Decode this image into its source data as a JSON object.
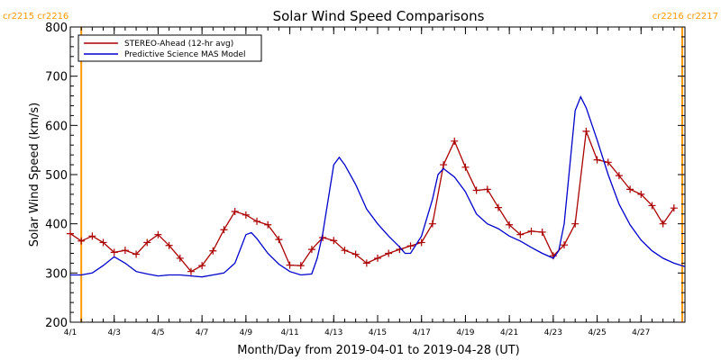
{
  "chart_data": {
    "type": "line",
    "title": "Solar Wind Speed Comparisons",
    "xlabel": "Month/Day from 2019-04-01 to 2019-04-28 (UT)",
    "ylabel": "Solar Wind Speed (km/s)",
    "xlim": [
      "2019-04-01",
      "2019-04-29"
    ],
    "ylim": [
      200,
      800
    ],
    "x_ticks": [
      {
        "date": "2019-04-01",
        "label": "4/1"
      },
      {
        "date": "2019-04-03",
        "label": "4/3"
      },
      {
        "date": "2019-04-05",
        "label": "4/5"
      },
      {
        "date": "2019-04-07",
        "label": "4/7"
      },
      {
        "date": "2019-04-09",
        "label": "4/9"
      },
      {
        "date": "2019-04-11",
        "label": "4/11"
      },
      {
        "date": "2019-04-13",
        "label": "4/13"
      },
      {
        "date": "2019-04-15",
        "label": "4/15"
      },
      {
        "date": "2019-04-17",
        "label": "4/17"
      },
      {
        "date": "2019-04-19",
        "label": "4/19"
      },
      {
        "date": "2019-04-21",
        "label": "4/21"
      },
      {
        "date": "2019-04-23",
        "label": "4/23"
      },
      {
        "date": "2019-04-25",
        "label": "4/25"
      },
      {
        "date": "2019-04-27",
        "label": "4/27"
      }
    ],
    "y_ticks": [
      200,
      300,
      400,
      500,
      600,
      700,
      800
    ],
    "legend_position": "top-left",
    "carrington_markers": [
      {
        "date": "2019-04-01T12:00",
        "label": "cr2215 cr2216",
        "side": "left"
      },
      {
        "date": "2019-04-28T21:00",
        "label": "cr2216 cr2217",
        "side": "right"
      }
    ],
    "series": [
      {
        "name": "STEREO-Ahead (12-hr avg)",
        "color": "#aa0000",
        "marker": "plus",
        "points": [
          [
            "2019-04-01T00:00",
            380
          ],
          [
            "2019-04-01T12:00",
            365
          ],
          [
            "2019-04-02T00:00",
            375
          ],
          [
            "2019-04-02T12:00",
            362
          ],
          [
            "2019-04-03T00:00",
            342
          ],
          [
            "2019-04-03T12:00",
            346
          ],
          [
            "2019-04-04T00:00",
            338
          ],
          [
            "2019-04-04T12:00",
            362
          ],
          [
            "2019-04-05T00:00",
            378
          ],
          [
            "2019-04-05T12:00",
            356
          ],
          [
            "2019-04-06T00:00",
            330
          ],
          [
            "2019-04-06T12:00",
            303
          ],
          [
            "2019-04-07T00:00",
            315
          ],
          [
            "2019-04-07T12:00",
            345
          ],
          [
            "2019-04-08T00:00",
            388
          ],
          [
            "2019-04-08T12:00",
            425
          ],
          [
            "2019-04-09T00:00",
            418
          ],
          [
            "2019-04-09T12:00",
            405
          ],
          [
            "2019-04-10T00:00",
            398
          ],
          [
            "2019-04-10T12:00",
            368
          ],
          [
            "2019-04-11T00:00",
            316
          ],
          [
            "2019-04-11T12:00",
            315
          ],
          [
            "2019-04-12T00:00",
            348
          ],
          [
            "2019-04-12T12:00",
            372
          ],
          [
            "2019-04-13T00:00",
            366
          ],
          [
            "2019-04-13T12:00",
            346
          ],
          [
            "2019-04-14T00:00",
            338
          ],
          [
            "2019-04-14T12:00",
            320
          ],
          [
            "2019-04-15T00:00",
            330
          ],
          [
            "2019-04-15T12:00",
            340
          ],
          [
            "2019-04-16T00:00",
            348
          ],
          [
            "2019-04-16T12:00",
            355
          ],
          [
            "2019-04-17T00:00",
            362
          ],
          [
            "2019-04-17T12:00",
            400
          ],
          [
            "2019-04-18T00:00",
            520
          ],
          [
            "2019-04-18T12:00",
            568
          ],
          [
            "2019-04-19T00:00",
            515
          ],
          [
            "2019-04-19T12:00",
            468
          ],
          [
            "2019-04-20T00:00",
            470
          ],
          [
            "2019-04-20T12:00",
            433
          ],
          [
            "2019-04-21T00:00",
            398
          ],
          [
            "2019-04-21T12:00",
            378
          ],
          [
            "2019-04-22T00:00",
            385
          ],
          [
            "2019-04-22T12:00",
            383
          ],
          [
            "2019-04-23T00:00",
            335
          ],
          [
            "2019-04-23T12:00",
            357
          ],
          [
            "2019-04-24T00:00",
            400
          ],
          [
            "2019-04-24T12:00",
            588
          ],
          [
            "2019-04-25T00:00",
            530
          ],
          [
            "2019-04-25T12:00",
            525
          ],
          [
            "2019-04-26T00:00",
            498
          ],
          [
            "2019-04-26T12:00",
            470
          ],
          [
            "2019-04-27T00:00",
            460
          ],
          [
            "2019-04-27T12:00",
            437
          ],
          [
            "2019-04-28T00:00",
            400
          ],
          [
            "2019-04-28T12:00",
            432
          ]
        ]
      },
      {
        "name": "Predictive Science MAS Model",
        "color": "#0000cc",
        "marker": "none",
        "points": [
          [
            "2019-04-01T00:00",
            296
          ],
          [
            "2019-04-01T12:00",
            296
          ],
          [
            "2019-04-02T00:00",
            300
          ],
          [
            "2019-04-02T12:00",
            315
          ],
          [
            "2019-04-03T00:00",
            333
          ],
          [
            "2019-04-03T12:00",
            320
          ],
          [
            "2019-04-04T00:00",
            303
          ],
          [
            "2019-04-04T12:00",
            298
          ],
          [
            "2019-04-05T00:00",
            294
          ],
          [
            "2019-04-05T12:00",
            296
          ],
          [
            "2019-04-06T00:00",
            296
          ],
          [
            "2019-04-06T12:00",
            294
          ],
          [
            "2019-04-07T00:00",
            292
          ],
          [
            "2019-04-07T12:00",
            296
          ],
          [
            "2019-04-08T00:00",
            300
          ],
          [
            "2019-04-08T12:00",
            320
          ],
          [
            "2019-04-09T00:00",
            378
          ],
          [
            "2019-04-09T06:00",
            382
          ],
          [
            "2019-04-09T12:00",
            370
          ],
          [
            "2019-04-10T00:00",
            340
          ],
          [
            "2019-04-10T12:00",
            318
          ],
          [
            "2019-04-11T00:00",
            303
          ],
          [
            "2019-04-11T12:00",
            296
          ],
          [
            "2019-04-12T00:00",
            298
          ],
          [
            "2019-04-12T06:00",
            330
          ],
          [
            "2019-04-12T12:00",
            380
          ],
          [
            "2019-04-13T00:00",
            520
          ],
          [
            "2019-04-13T06:00",
            535
          ],
          [
            "2019-04-13T12:00",
            520
          ],
          [
            "2019-04-14T00:00",
            480
          ],
          [
            "2019-04-14T12:00",
            430
          ],
          [
            "2019-04-15T00:00",
            400
          ],
          [
            "2019-04-15T12:00",
            375
          ],
          [
            "2019-04-16T00:00",
            353
          ],
          [
            "2019-04-16T06:00",
            340
          ],
          [
            "2019-04-16T12:00",
            340
          ],
          [
            "2019-04-17T00:00",
            375
          ],
          [
            "2019-04-17T12:00",
            450
          ],
          [
            "2019-04-17T18:00",
            500
          ],
          [
            "2019-04-18T00:00",
            512
          ],
          [
            "2019-04-18T12:00",
            495
          ],
          [
            "2019-04-19T00:00",
            465
          ],
          [
            "2019-04-19T12:00",
            420
          ],
          [
            "2019-04-20T00:00",
            400
          ],
          [
            "2019-04-20T12:00",
            390
          ],
          [
            "2019-04-21T00:00",
            375
          ],
          [
            "2019-04-21T12:00",
            365
          ],
          [
            "2019-04-22T00:00",
            352
          ],
          [
            "2019-04-22T12:00",
            340
          ],
          [
            "2019-04-23T00:00",
            330
          ],
          [
            "2019-04-23T06:00",
            345
          ],
          [
            "2019-04-23T12:00",
            400
          ],
          [
            "2019-04-24T00:00",
            630
          ],
          [
            "2019-04-24T06:00",
            658
          ],
          [
            "2019-04-24T12:00",
            636
          ],
          [
            "2019-04-25T00:00",
            570
          ],
          [
            "2019-04-25T12:00",
            500
          ],
          [
            "2019-04-26T00:00",
            440
          ],
          [
            "2019-04-26T12:00",
            398
          ],
          [
            "2019-04-27T00:00",
            367
          ],
          [
            "2019-04-27T12:00",
            345
          ],
          [
            "2019-04-28T00:00",
            330
          ],
          [
            "2019-04-28T12:00",
            320
          ],
          [
            "2019-04-29T00:00",
            313
          ]
        ]
      }
    ]
  }
}
